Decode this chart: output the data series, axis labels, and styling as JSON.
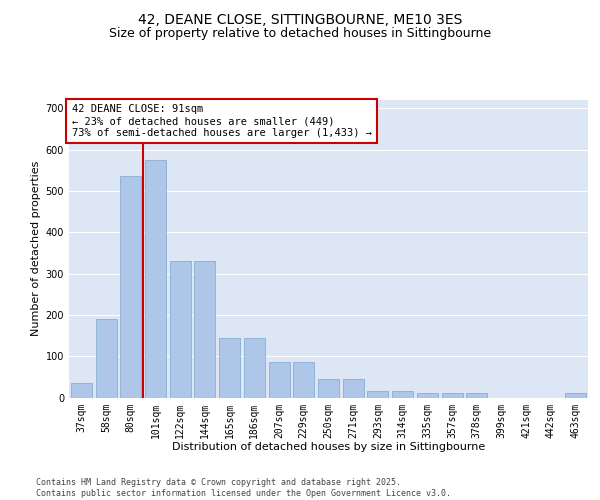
{
  "title": "42, DEANE CLOSE, SITTINGBOURNE, ME10 3ES",
  "subtitle": "Size of property relative to detached houses in Sittingbourne",
  "xlabel": "Distribution of detached houses by size in Sittingbourne",
  "ylabel": "Number of detached properties",
  "categories": [
    "37sqm",
    "58sqm",
    "80sqm",
    "101sqm",
    "122sqm",
    "144sqm",
    "165sqm",
    "186sqm",
    "207sqm",
    "229sqm",
    "250sqm",
    "271sqm",
    "293sqm",
    "314sqm",
    "335sqm",
    "357sqm",
    "378sqm",
    "399sqm",
    "421sqm",
    "442sqm",
    "463sqm"
  ],
  "values": [
    35,
    190,
    535,
    575,
    330,
    330,
    145,
    145,
    85,
    85,
    45,
    45,
    15,
    15,
    10,
    10,
    10,
    0,
    0,
    0,
    10
  ],
  "bar_color": "#aec6e8",
  "bar_edge_color": "#7ba7d0",
  "vline_x": 2.5,
  "vline_color": "#cc0000",
  "annotation_text": "42 DEANE CLOSE: 91sqm\n← 23% of detached houses are smaller (449)\n73% of semi-detached houses are larger (1,433) →",
  "annotation_box_color": "#ffffff",
  "annotation_box_edge": "#cc0000",
  "ylim": [
    0,
    720
  ],
  "yticks": [
    0,
    100,
    200,
    300,
    400,
    500,
    600,
    700
  ],
  "bg_color": "#dce6f5",
  "footer": "Contains HM Land Registry data © Crown copyright and database right 2025.\nContains public sector information licensed under the Open Government Licence v3.0.",
  "title_fontsize": 10,
  "subtitle_fontsize": 9,
  "axis_fontsize": 8,
  "tick_fontsize": 7,
  "ann_fontsize": 7.5
}
